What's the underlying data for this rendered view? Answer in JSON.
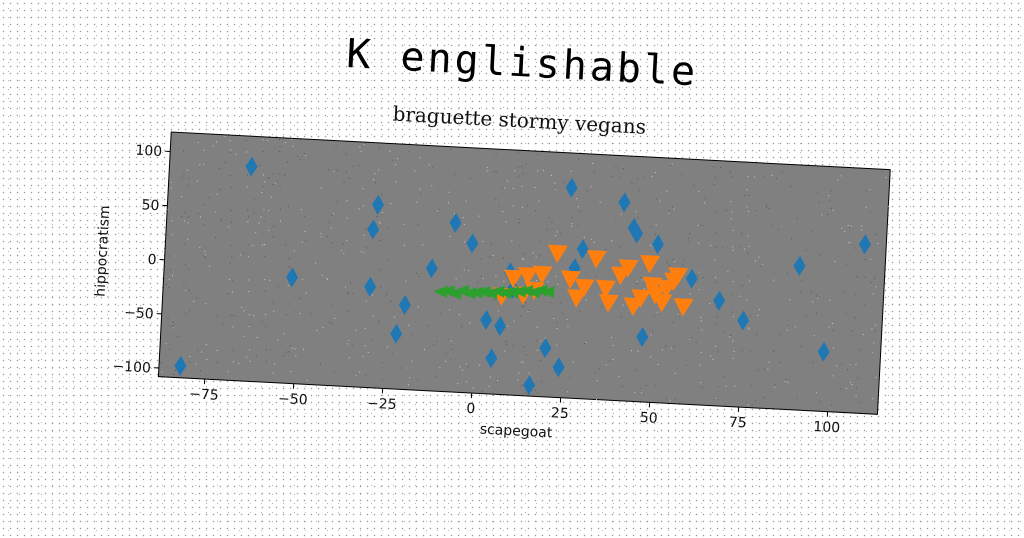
{
  "title": "K englishable",
  "subtitle": "braguette stormy vegans",
  "chart_data": {
    "type": "scatter",
    "title": "braguette stormy vegans",
    "xlabel": "scapegoat",
    "ylabel": "hippocratism",
    "xlim": [
      -88,
      114
    ],
    "ylim": [
      -108,
      118
    ],
    "x_ticks": [
      -75,
      -50,
      -25,
      0,
      25,
      50,
      75,
      100
    ],
    "y_ticks": [
      -100,
      -50,
      0,
      50,
      100
    ],
    "grid": false,
    "legend": "none",
    "background": "#808080",
    "series": [
      {
        "marker": "diamond",
        "color": "#1f77b4",
        "points": [
          [
            -65,
            90
          ],
          [
            -82,
            -97
          ],
          [
            -52,
            -10
          ],
          [
            -29,
            61
          ],
          [
            -30,
            38
          ],
          [
            -30,
            -15
          ],
          [
            -20,
            -30
          ],
          [
            -22,
            -57
          ],
          [
            -13,
            5
          ],
          [
            -7,
            48
          ],
          [
            -2,
            30
          ],
          [
            3,
            -40
          ],
          [
            5,
            -75
          ],
          [
            7,
            -45
          ],
          [
            9,
            5
          ],
          [
            10,
            -10
          ],
          [
            16,
            -98
          ],
          [
            20,
            -63
          ],
          [
            24,
            -80
          ],
          [
            25,
            86
          ],
          [
            27,
            12
          ],
          [
            29,
            30
          ],
          [
            40,
            75
          ],
          [
            43,
            52
          ],
          [
            44,
            47
          ],
          [
            47,
            -48
          ],
          [
            50,
            38
          ],
          [
            60,
            8
          ],
          [
            68,
            -11
          ],
          [
            75,
            -28
          ],
          [
            90,
            25
          ],
          [
            98,
            -53
          ],
          [
            108,
            48
          ]
        ]
      },
      {
        "marker": "triangle-down",
        "color": "#ff7f0e",
        "points": [
          [
            10,
            0
          ],
          [
            14,
            3
          ],
          [
            16,
            -10
          ],
          [
            18,
            5
          ],
          [
            22,
            25
          ],
          [
            26,
            2
          ],
          [
            28,
            -15
          ],
          [
            30,
            -5
          ],
          [
            33,
            22
          ],
          [
            36,
            -5
          ],
          [
            37,
            -18
          ],
          [
            40,
            8
          ],
          [
            42,
            15
          ],
          [
            44,
            -20
          ],
          [
            46,
            -12
          ],
          [
            48,
            20
          ],
          [
            49,
            0
          ],
          [
            50,
            -8
          ],
          [
            52,
            -15
          ],
          [
            53,
            -2
          ],
          [
            55,
            5
          ],
          [
            56,
            10
          ],
          [
            58,
            -18
          ],
          [
            7,
            -17
          ],
          [
            13,
            -15
          ]
        ]
      },
      {
        "marker": "triangle-left",
        "color": "#2ca02c",
        "points": [
          [
            -10,
            -16
          ],
          [
            -8,
            -15
          ],
          [
            -6,
            -17
          ],
          [
            -4,
            -14
          ],
          [
            -2,
            -16
          ],
          [
            0,
            -15
          ],
          [
            2,
            -14
          ],
          [
            4,
            -15
          ],
          [
            6,
            -13
          ],
          [
            8,
            -14
          ],
          [
            10,
            -13
          ],
          [
            12,
            -12
          ],
          [
            14,
            -11
          ],
          [
            16,
            -12
          ],
          [
            18,
            -10
          ],
          [
            20,
            -11
          ]
        ]
      }
    ]
  }
}
